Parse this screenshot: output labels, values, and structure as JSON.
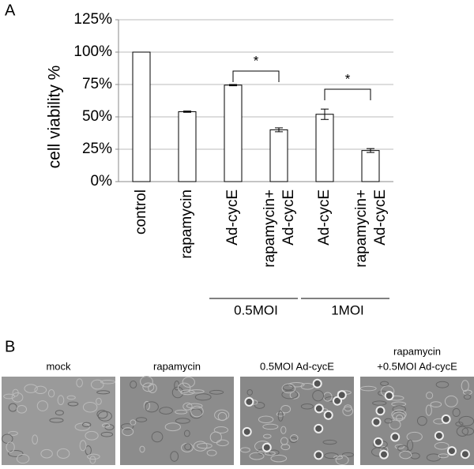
{
  "chart_data": {
    "type": "bar",
    "panel_label": "A",
    "ylabel": "cell viability %",
    "categories": [
      [
        "control"
      ],
      [
        "rapamycin"
      ],
      [
        "Ad-cycE"
      ],
      [
        "rapamycin+",
        "Ad-cycE"
      ],
      [
        "Ad-cycE"
      ],
      [
        "rapamycin+",
        "Ad-cycE"
      ]
    ],
    "values": [
      100,
      54,
      74.5,
      40,
      52,
      24
    ],
    "errors": [
      0,
      0.5,
      0.5,
      1.5,
      4,
      1.5
    ],
    "color": "#ffffff",
    "ylim": [
      0,
      125
    ],
    "yticks": [
      {
        "value": 0,
        "label": "0%"
      },
      {
        "value": 25,
        "label": "25%"
      },
      {
        "value": 50,
        "label": "50%"
      },
      {
        "value": 75,
        "label": "75%"
      },
      {
        "value": 100,
        "label": "100%"
      },
      {
        "value": 125,
        "label": "125%"
      }
    ],
    "grid": true,
    "groups": [
      "0.5MOI",
      "1MOI"
    ],
    "annotations": [
      "*",
      "*"
    ]
  },
  "panel_b": {
    "panel_label": "B",
    "captions": [
      [
        "mock"
      ],
      [
        "rapamycin"
      ],
      [
        "0.5MOI Ad-cycE"
      ],
      [
        "rapamycin",
        "+0.5MOI Ad-cycE"
      ]
    ]
  }
}
